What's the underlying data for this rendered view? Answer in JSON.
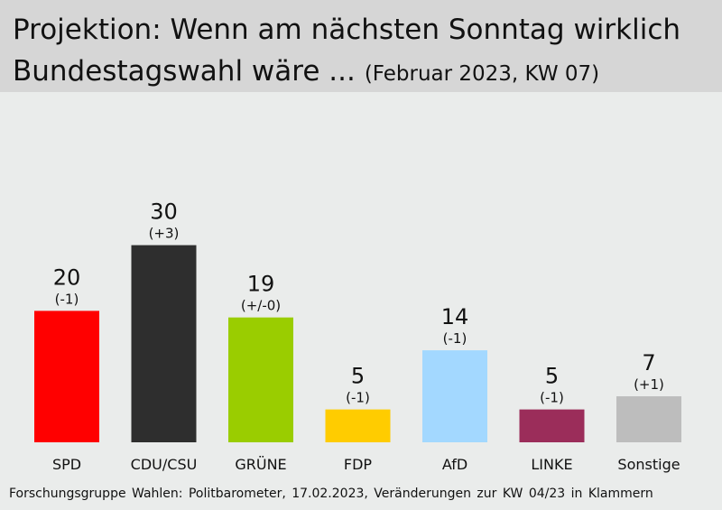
{
  "header": {
    "title_line1": "Projektion: Wenn am nächsten Sonntag wirklich",
    "title_line2": "Bundestagswahl wäre ...",
    "subtitle": "(Februar 2023, KW 07)"
  },
  "chart_data": {
    "type": "bar",
    "title": "Projektion: Wenn am nächsten Sonntag wirklich Bundestagswahl wäre ...",
    "subtitle": "(Februar 2023, KW 07)",
    "categories": [
      "SPD",
      "CDU/CSU",
      "GRÜNE",
      "FDP",
      "AfD",
      "LINKE",
      "Sonstige"
    ],
    "values": [
      20,
      30,
      19,
      5,
      14,
      5,
      7
    ],
    "changes": [
      "(-1)",
      "(+3)",
      "(+/-0)",
      "(-1)",
      "(-1)",
      "(-1)",
      "(+1)"
    ],
    "colors": [
      "#ff0000",
      "#2e2e2e",
      "#9acd00",
      "#ffcc00",
      "#a3d8ff",
      "#9b2d5a",
      "#bdbdbd"
    ],
    "grid": false,
    "legend": "none"
  },
  "footer": {
    "source": "Forschungsgruppe Wahlen: Politbarometer, 17.02.2023, Veränderungen zur KW 04/23 in Klammern"
  }
}
